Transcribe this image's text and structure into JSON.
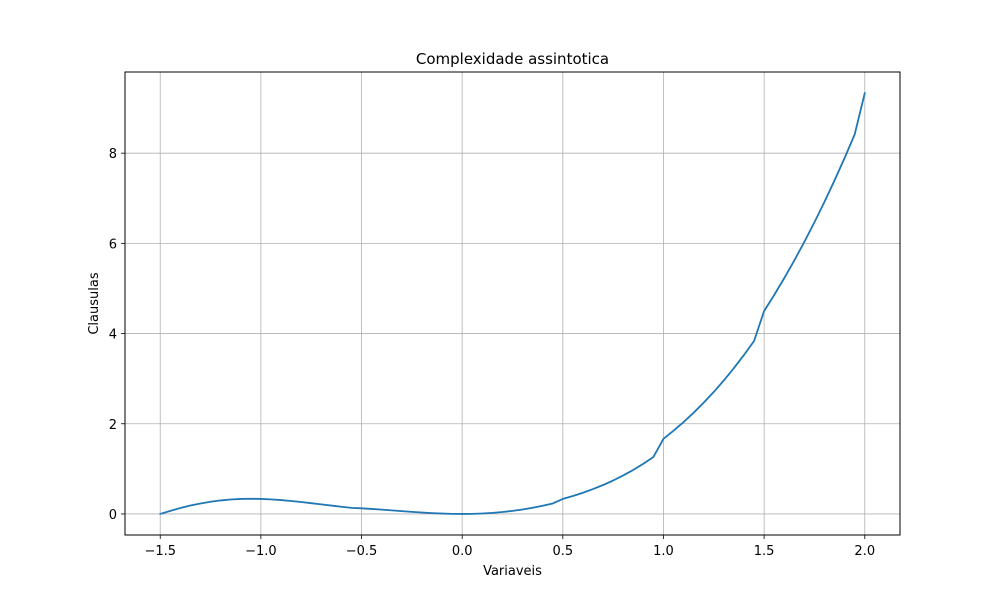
{
  "chart_data": {
    "type": "line",
    "title": "Complexidade assintotica",
    "xlabel": "Variaveis",
    "ylabel": "Clausulas",
    "xlim": [
      -1.675,
      2.175
    ],
    "ylim": [
      -0.4667,
      9.8
    ],
    "grid": true,
    "x_ticks": [
      -1.5,
      -1.0,
      -0.5,
      0.0,
      0.5,
      1.0,
      1.5,
      2.0
    ],
    "x_tick_labels": [
      "−1.5",
      "−1.0",
      "−0.5",
      "0.0",
      "0.5",
      "1.0",
      "1.5",
      "2.0"
    ],
    "y_ticks": [
      0,
      2,
      4,
      6,
      8
    ],
    "y_tick_labels": [
      "0",
      "2",
      "4",
      "6",
      "8"
    ],
    "colors": {
      "series": "#1f77b4",
      "grid": "#b0b0b0",
      "axes": "#000000"
    },
    "series": [
      {
        "x": [
          -1.5,
          -1.45,
          -1.4,
          -1.35,
          -1.3,
          -1.25,
          -1.2,
          -1.15,
          -1.1,
          -1.05,
          -1.0,
          -0.95,
          -0.9,
          -0.85,
          -0.8,
          -0.75,
          -0.7,
          -0.65,
          -0.6,
          -0.55,
          -0.5,
          -0.45,
          -0.4,
          -0.35,
          -0.3,
          -0.25,
          -0.2,
          -0.15,
          -0.1,
          -0.05,
          0.0,
          0.05,
          0.1,
          0.15,
          0.2,
          0.25,
          0.3,
          0.35,
          0.4,
          0.45,
          0.5,
          0.55,
          0.6,
          0.65,
          0.7,
          0.75,
          0.8,
          0.85,
          0.9,
          0.95,
          1.0,
          1.05,
          1.1,
          1.15,
          1.2,
          1.25,
          1.3,
          1.35,
          1.4,
          1.45,
          1.5,
          1.55,
          1.6,
          1.65,
          1.7,
          1.75,
          1.8,
          1.85,
          1.9,
          1.95,
          2.0
        ],
        "y": [
          0.0,
          0.0675,
          0.1307,
          0.1865,
          0.2323,
          0.2708,
          0.3,
          0.3206,
          0.3327,
          0.3369,
          0.3333,
          0.3234,
          0.3078,
          0.2879,
          0.2645,
          0.2391,
          0.2123,
          0.1858,
          0.1598,
          0.1351,
          0.1249,
          0.1114,
          0.096,
          0.0796,
          0.063,
          0.0469,
          0.032,
          0.0191,
          0.009,
          0.0024,
          0.0,
          0.0026,
          0.0107,
          0.0236,
          0.0427,
          0.0677,
          0.099,
          0.1372,
          0.1813,
          0.2329,
          0.3333,
          0.3976,
          0.47,
          0.5513,
          0.6417,
          0.7419,
          0.8533,
          0.9766,
          1.113,
          1.2632,
          1.6667,
          1.846,
          2.0387,
          2.2457,
          2.468,
          2.7063,
          2.9615,
          3.2343,
          3.5253,
          3.8353,
          4.5,
          4.8554,
          5.2293,
          5.6222,
          6.0349,
          6.468,
          6.9222,
          7.3982,
          7.8965,
          8.4177,
          9.3333
        ]
      }
    ]
  }
}
